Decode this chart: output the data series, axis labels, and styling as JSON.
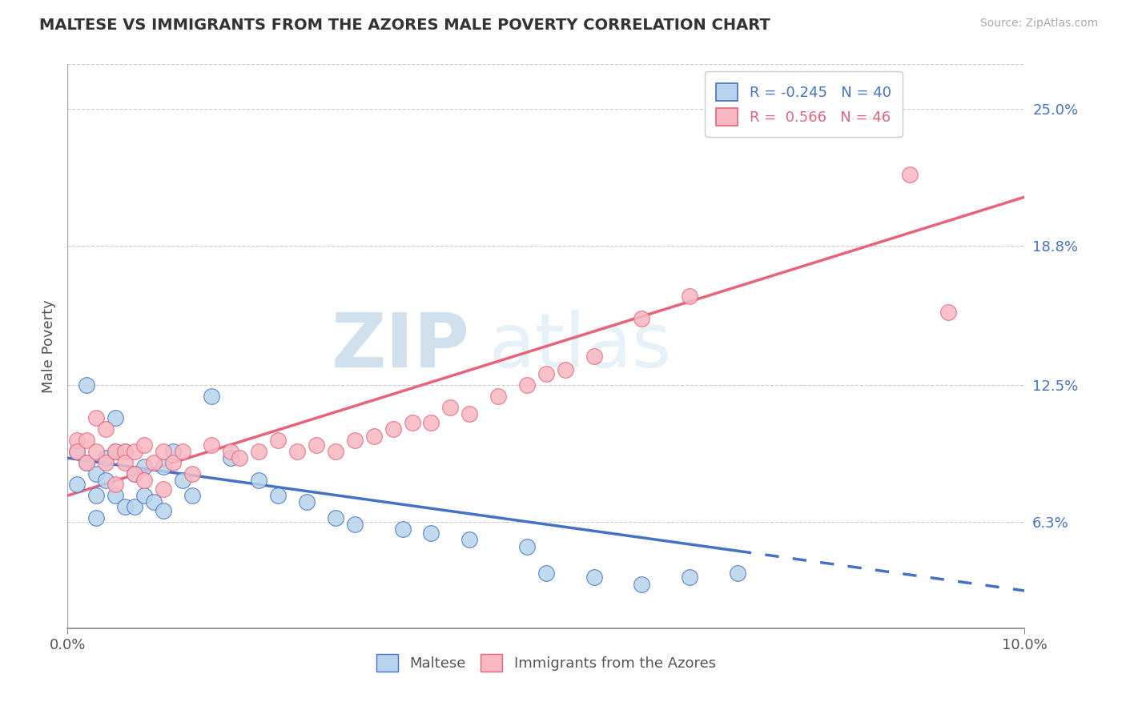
{
  "title": "MALTESE VS IMMIGRANTS FROM THE AZORES MALE POVERTY CORRELATION CHART",
  "source": "Source: ZipAtlas.com",
  "ylabel": "Male Poverty",
  "y_ticks": [
    0.063,
    0.125,
    0.188,
    0.25
  ],
  "y_tick_labels": [
    "6.3%",
    "12.5%",
    "18.8%",
    "25.0%"
  ],
  "xlim": [
    0.0,
    0.1
  ],
  "ylim": [
    0.015,
    0.27
  ],
  "legend_r1": "R = -0.245",
  "legend_n1": "N = 40",
  "legend_r2": "R =  0.566",
  "legend_n2": "N = 46",
  "color_maltese": "#b8d4ec",
  "color_azores": "#f9b8c2",
  "line_color_maltese": "#4472c4",
  "line_color_azores": "#e8637a",
  "watermark_zip": "ZIP",
  "watermark_atlas": "atlas",
  "maltese_x": [
    0.001,
    0.001,
    0.002,
    0.002,
    0.003,
    0.003,
    0.003,
    0.004,
    0.004,
    0.005,
    0.005,
    0.005,
    0.006,
    0.006,
    0.007,
    0.007,
    0.008,
    0.008,
    0.009,
    0.01,
    0.01,
    0.011,
    0.012,
    0.013,
    0.015,
    0.017,
    0.02,
    0.022,
    0.025,
    0.028,
    0.03,
    0.035,
    0.038,
    0.042,
    0.048,
    0.05,
    0.055,
    0.06,
    0.065,
    0.07
  ],
  "maltese_y": [
    0.095,
    0.08,
    0.125,
    0.09,
    0.085,
    0.075,
    0.065,
    0.092,
    0.082,
    0.11,
    0.095,
    0.075,
    0.095,
    0.07,
    0.085,
    0.07,
    0.088,
    0.075,
    0.072,
    0.088,
    0.068,
    0.095,
    0.082,
    0.075,
    0.12,
    0.092,
    0.082,
    0.075,
    0.072,
    0.065,
    0.062,
    0.06,
    0.058,
    0.055,
    0.052,
    0.04,
    0.038,
    0.035,
    0.038,
    0.04
  ],
  "azores_x": [
    0.001,
    0.001,
    0.002,
    0.002,
    0.003,
    0.003,
    0.004,
    0.004,
    0.005,
    0.005,
    0.006,
    0.006,
    0.007,
    0.007,
    0.008,
    0.008,
    0.009,
    0.01,
    0.01,
    0.011,
    0.012,
    0.013,
    0.015,
    0.017,
    0.018,
    0.02,
    0.022,
    0.024,
    0.026,
    0.028,
    0.03,
    0.032,
    0.034,
    0.036,
    0.038,
    0.04,
    0.042,
    0.045,
    0.048,
    0.05,
    0.052,
    0.055,
    0.06,
    0.065,
    0.088,
    0.092
  ],
  "azores_y": [
    0.1,
    0.095,
    0.09,
    0.1,
    0.11,
    0.095,
    0.105,
    0.09,
    0.095,
    0.08,
    0.095,
    0.09,
    0.095,
    0.085,
    0.098,
    0.082,
    0.09,
    0.095,
    0.078,
    0.09,
    0.095,
    0.085,
    0.098,
    0.095,
    0.092,
    0.095,
    0.1,
    0.095,
    0.098,
    0.095,
    0.1,
    0.102,
    0.105,
    0.108,
    0.108,
    0.115,
    0.112,
    0.12,
    0.125,
    0.13,
    0.132,
    0.138,
    0.155,
    0.165,
    0.22,
    0.158
  ],
  "trend_maltese_x0": 0.0,
  "trend_maltese_y0": 0.092,
  "trend_maltese_x1": 0.1,
  "trend_maltese_y1": 0.032,
  "trend_azores_x0": 0.0,
  "trend_azores_y0": 0.075,
  "trend_azores_x1": 0.1,
  "trend_azores_y1": 0.21
}
